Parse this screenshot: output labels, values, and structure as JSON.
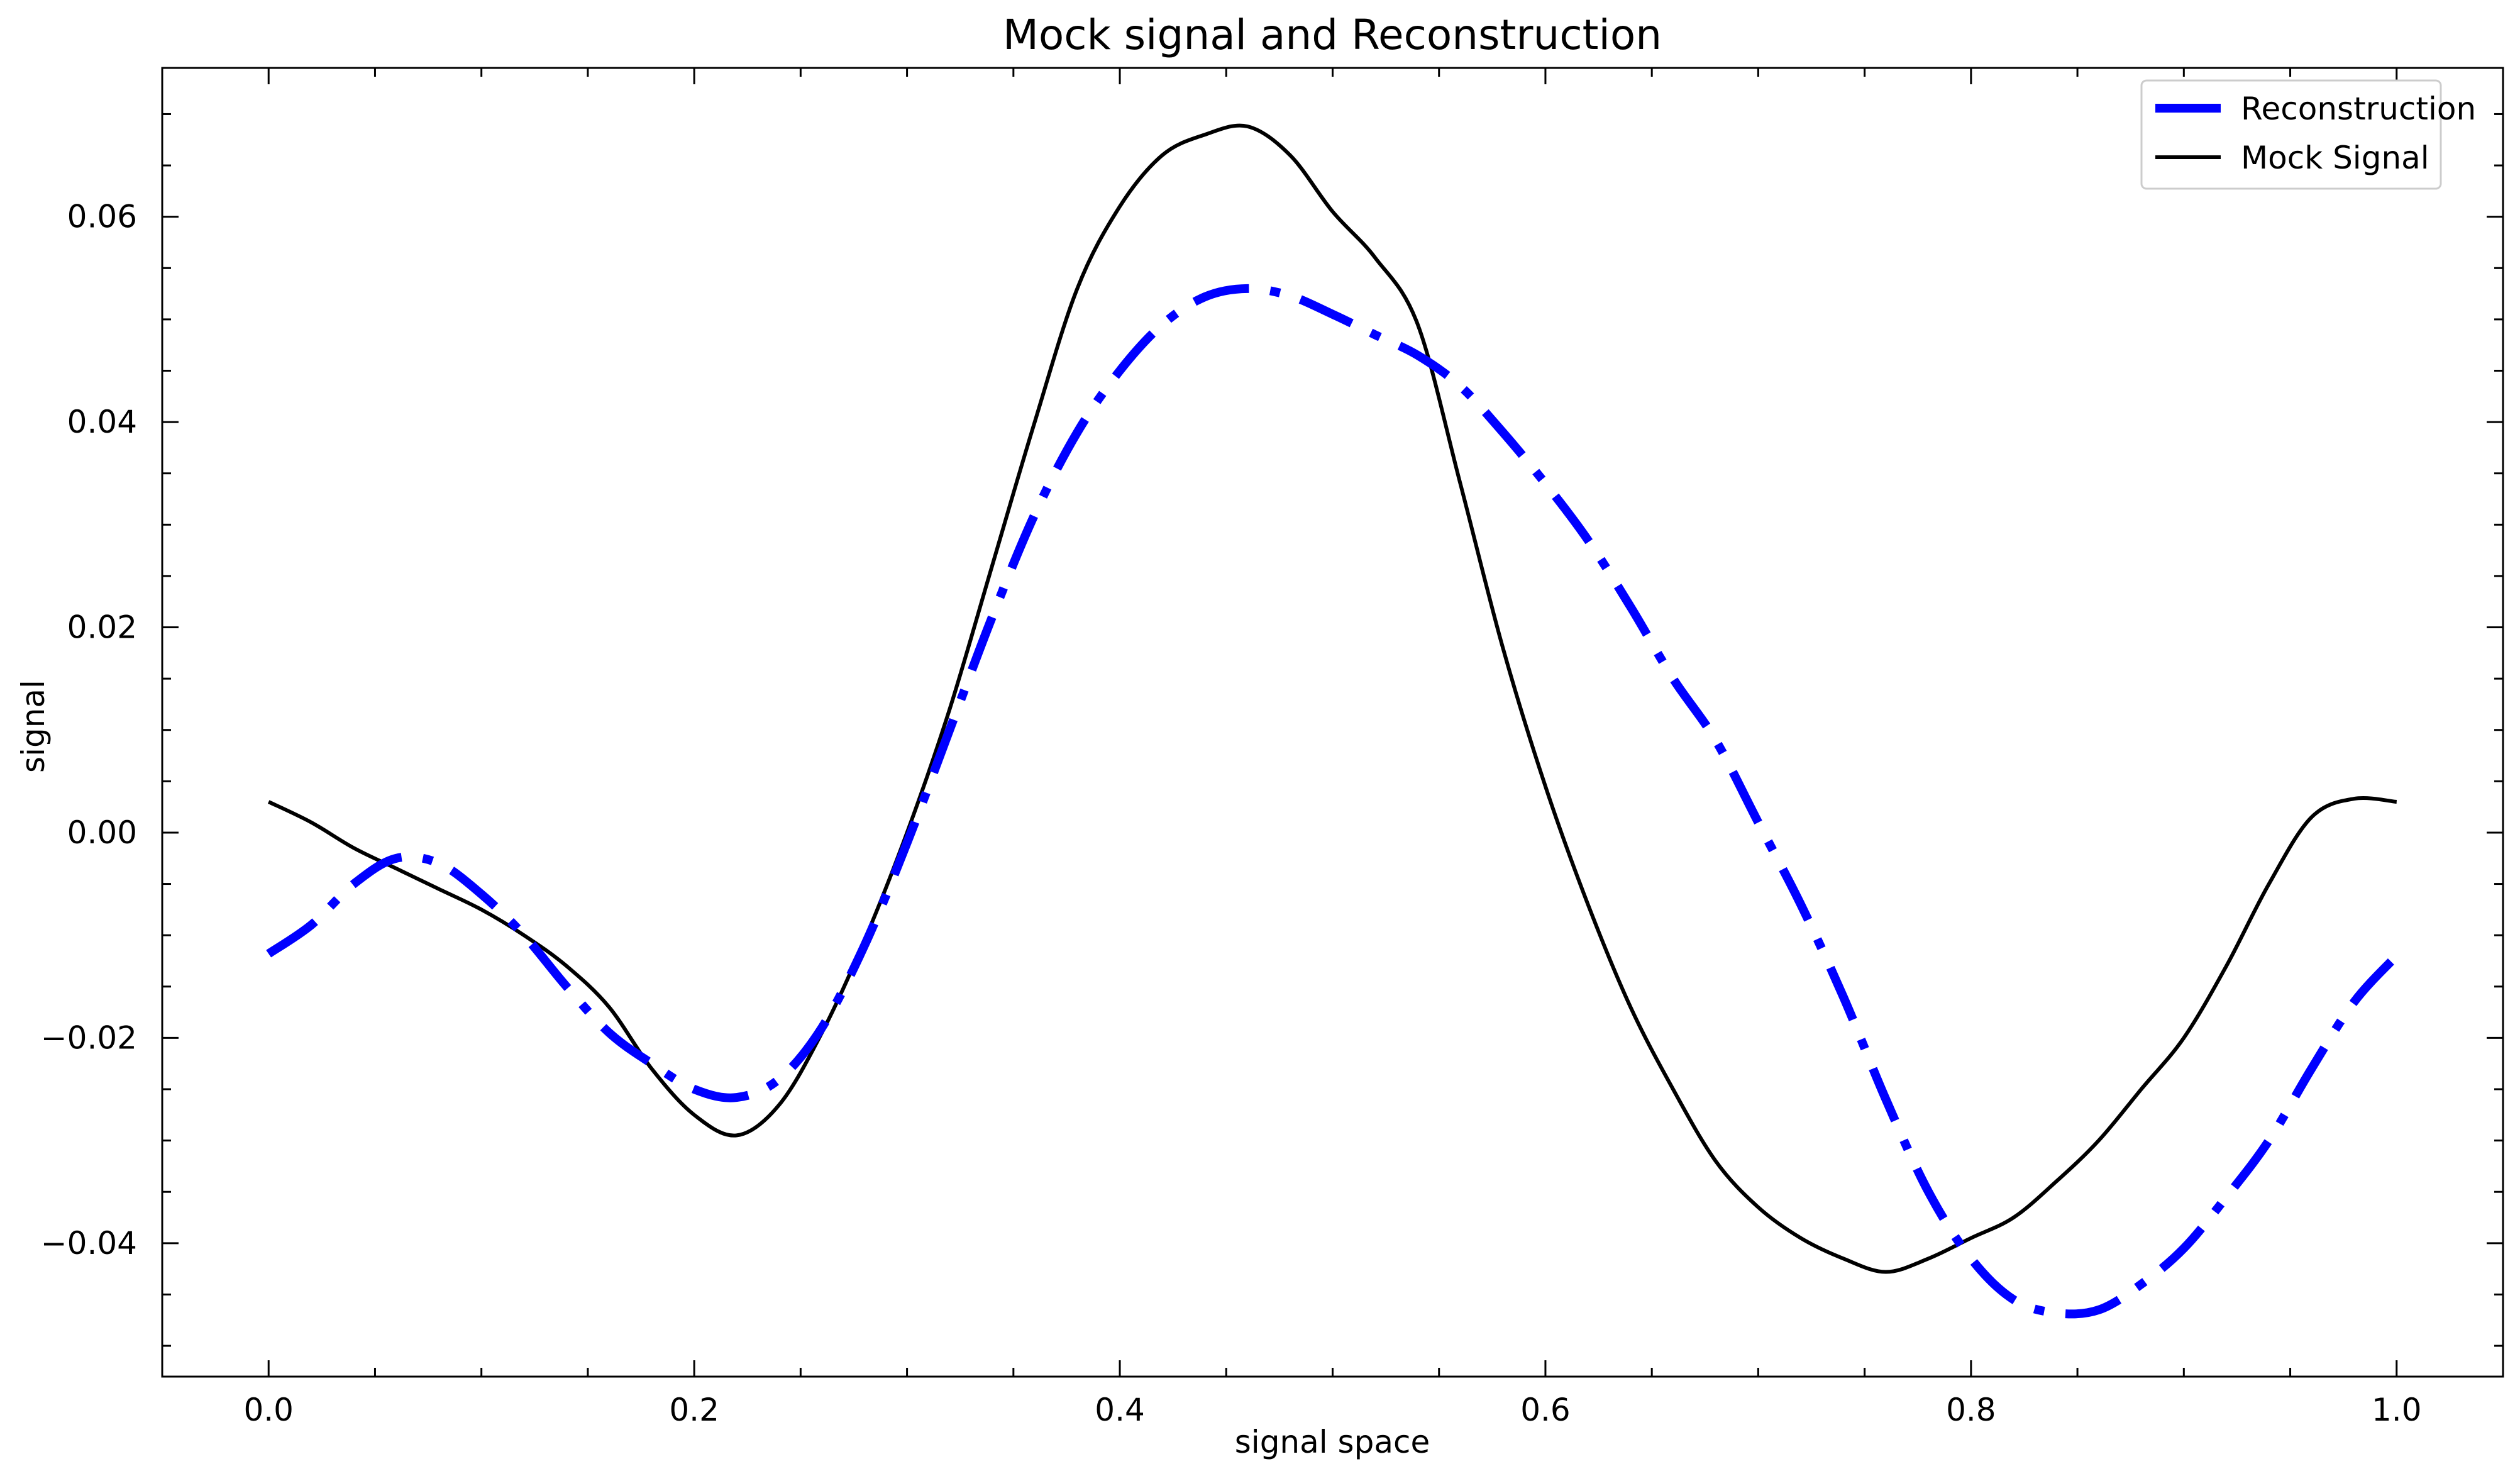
{
  "chart_data": {
    "type": "line",
    "title": "Mock signal and Reconstruction",
    "xlabel": "signal space",
    "ylabel": "signal",
    "xlim": [
      -0.05,
      1.05
    ],
    "ylim": [
      -0.053,
      0.0745
    ],
    "xticks": [
      0.0,
      0.2,
      0.4,
      0.6,
      0.8,
      1.0
    ],
    "xtick_labels": [
      "0.0",
      "0.2",
      "0.4",
      "0.6",
      "0.8",
      "1.0"
    ],
    "yticks": [
      -0.04,
      -0.02,
      0.0,
      0.02,
      0.04,
      0.06
    ],
    "ytick_labels": [
      "−0.04",
      "−0.02",
      "0.00",
      "0.02",
      "0.04",
      "0.06"
    ],
    "grid": false,
    "legend_position": "top-right",
    "series": [
      {
        "name": "Reconstruction",
        "color": "#0000ff",
        "style": "dashdot",
        "x": [
          0.0,
          0.02,
          0.04,
          0.06,
          0.08,
          0.1,
          0.12,
          0.14,
          0.16,
          0.18,
          0.2,
          0.22,
          0.24,
          0.26,
          0.28,
          0.3,
          0.32,
          0.34,
          0.36,
          0.38,
          0.4,
          0.42,
          0.44,
          0.46,
          0.48,
          0.5,
          0.52,
          0.54,
          0.56,
          0.58,
          0.6,
          0.62,
          0.64,
          0.66,
          0.68,
          0.7,
          0.72,
          0.74,
          0.76,
          0.78,
          0.8,
          0.82,
          0.84,
          0.86,
          0.88,
          0.9,
          0.92,
          0.94,
          0.96,
          0.98,
          1.0
        ],
        "y": [
          -0.0118,
          -0.009,
          -0.005,
          -0.0025,
          -0.003,
          -0.006,
          -0.01,
          -0.015,
          -0.0195,
          -0.0225,
          -0.025,
          -0.0258,
          -0.024,
          -0.019,
          -0.011,
          -0.001,
          0.01,
          0.021,
          0.031,
          0.039,
          0.045,
          0.0495,
          0.0522,
          0.053,
          0.0523,
          0.0505,
          0.0485,
          0.0465,
          0.0435,
          0.039,
          0.034,
          0.0285,
          0.022,
          0.015,
          0.009,
          0.001,
          -0.007,
          -0.016,
          -0.026,
          -0.035,
          -0.0415,
          -0.0455,
          -0.0468,
          -0.0465,
          -0.044,
          -0.0405,
          -0.0355,
          -0.03,
          -0.023,
          -0.0165,
          -0.012
        ]
      },
      {
        "name": "Mock Signal",
        "color": "#000000",
        "style": "solid",
        "x": [
          0.0,
          0.02,
          0.04,
          0.06,
          0.08,
          0.1,
          0.12,
          0.14,
          0.16,
          0.18,
          0.2,
          0.22,
          0.24,
          0.26,
          0.28,
          0.3,
          0.32,
          0.34,
          0.36,
          0.38,
          0.4,
          0.42,
          0.44,
          0.46,
          0.48,
          0.5,
          0.52,
          0.54,
          0.56,
          0.58,
          0.6,
          0.62,
          0.64,
          0.66,
          0.68,
          0.7,
          0.72,
          0.74,
          0.76,
          0.78,
          0.8,
          0.82,
          0.84,
          0.86,
          0.88,
          0.9,
          0.92,
          0.94,
          0.96,
          0.98,
          1.0
        ],
        "y": [
          0.003,
          0.001,
          -0.0015,
          -0.0035,
          -0.0055,
          -0.0075,
          -0.01,
          -0.013,
          -0.017,
          -0.023,
          -0.0275,
          -0.0295,
          -0.0265,
          -0.0195,
          -0.0105,
          0.0,
          0.012,
          0.026,
          0.04,
          0.053,
          0.061,
          0.066,
          0.068,
          0.0688,
          0.066,
          0.0605,
          0.056,
          0.0495,
          0.034,
          0.018,
          0.0045,
          -0.007,
          -0.017,
          -0.025,
          -0.032,
          -0.0365,
          -0.0395,
          -0.0415,
          -0.0428,
          -0.0415,
          -0.0395,
          -0.0375,
          -0.034,
          -0.03,
          -0.025,
          -0.02,
          -0.013,
          -0.005,
          0.0015,
          0.0033,
          0.003
        ]
      }
    ]
  }
}
